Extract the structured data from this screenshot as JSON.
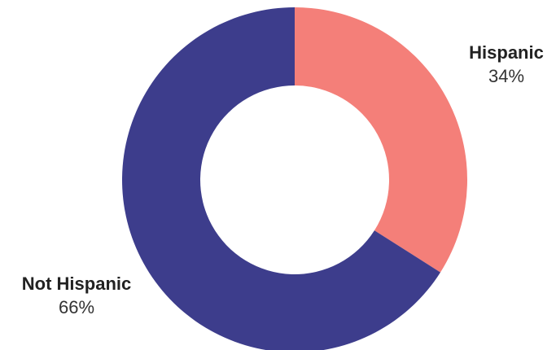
{
  "chart_data": {
    "type": "pie",
    "variant": "donut",
    "title": "",
    "slices": [
      {
        "name": "Hispanic",
        "value": 34,
        "label": "34%",
        "color": "#f47f79"
      },
      {
        "name": "Not Hispanic",
        "value": 66,
        "label": "66%",
        "color": "#3d3d8c"
      }
    ],
    "start_angle_deg": 0,
    "direction": "clockwise",
    "legend": "none"
  }
}
